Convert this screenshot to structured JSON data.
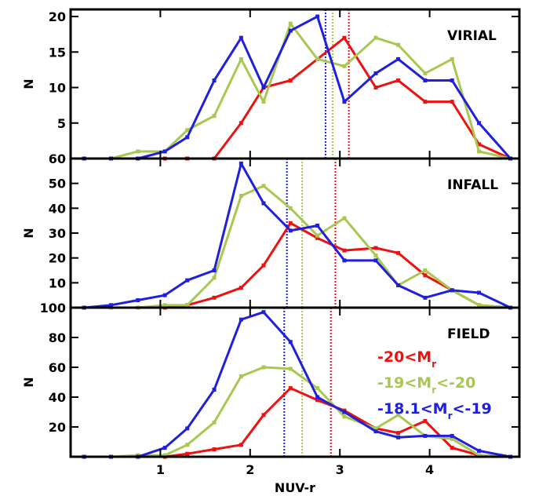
{
  "chart_data": [
    {
      "type": "line",
      "panel_label": "VIRIAL",
      "xlabel": "",
      "ylabel": "N",
      "xlim": [
        0,
        5
      ],
      "ylim": [
        0,
        21
      ],
      "yticks": [
        5,
        10,
        15,
        20
      ],
      "series": [
        {
          "color": "#ee1111",
          "x": [
            0.15,
            0.45,
            0.75,
            1.05,
            1.3,
            1.6,
            1.9,
            2.15,
            2.45,
            2.75,
            3.05,
            3.4,
            3.65,
            3.95,
            4.25,
            4.55,
            4.9
          ],
          "values": [
            0,
            0,
            0,
            0,
            0,
            0,
            5,
            10,
            11,
            14,
            17,
            10,
            11,
            8,
            8,
            2,
            0
          ]
        },
        {
          "color": "#a8c850",
          "x": [
            0.15,
            0.45,
            0.75,
            1.05,
            1.3,
            1.6,
            1.9,
            2.15,
            2.45,
            2.75,
            3.05,
            3.4,
            3.65,
            3.95,
            4.25,
            4.55,
            4.9
          ],
          "values": [
            0,
            0,
            1,
            1,
            4,
            6,
            14,
            8,
            19,
            14,
            13,
            17,
            16,
            12,
            14,
            1,
            0
          ]
        },
        {
          "color": "#1f1fdd",
          "x": [
            0.15,
            0.45,
            0.75,
            1.05,
            1.3,
            1.6,
            1.9,
            2.15,
            2.45,
            2.75,
            3.05,
            3.4,
            3.65,
            3.95,
            4.25,
            4.55,
            4.9
          ],
          "values": [
            0,
            0,
            0,
            1,
            3,
            11,
            17,
            10,
            18,
            20,
            8,
            12,
            14,
            11,
            11,
            5,
            0
          ]
        }
      ],
      "vlines": [
        {
          "color": "#ee1111",
          "x": 3.1
        },
        {
          "color": "#a8c850",
          "x": 2.92
        },
        {
          "color": "#1f1fdd",
          "x": 2.84
        }
      ]
    },
    {
      "type": "line",
      "panel_label": "INFALL",
      "xlabel": "",
      "ylabel": "N",
      "xlim": [
        0,
        5
      ],
      "ylim": [
        0,
        60
      ],
      "yticks": [
        10,
        20,
        30,
        40,
        50,
        60
      ],
      "series": [
        {
          "color": "#ee1111",
          "x": [
            0.15,
            0.45,
            0.75,
            1.05,
            1.3,
            1.6,
            1.9,
            2.15,
            2.45,
            2.75,
            3.05,
            3.4,
            3.65,
            3.95,
            4.25,
            4.55,
            4.9
          ],
          "values": [
            0,
            0,
            0,
            0,
            1,
            4,
            8,
            17,
            34,
            28,
            23,
            24,
            22,
            13,
            7,
            1,
            0
          ]
        },
        {
          "color": "#a8c850",
          "x": [
            0.15,
            0.45,
            0.75,
            1.05,
            1.3,
            1.6,
            1.9,
            2.15,
            2.45,
            2.75,
            3.05,
            3.4,
            3.65,
            3.95,
            4.25,
            4.55,
            4.9
          ],
          "values": [
            0,
            0,
            0,
            1,
            1,
            12,
            45,
            49,
            40,
            29,
            36,
            21,
            9,
            15,
            7,
            1,
            0
          ]
        },
        {
          "color": "#1f1fdd",
          "x": [
            0.15,
            0.45,
            0.75,
            1.05,
            1.3,
            1.6,
            1.9,
            2.15,
            2.45,
            2.75,
            3.05,
            3.4,
            3.65,
            3.95,
            4.25,
            4.55,
            4.9
          ],
          "values": [
            0,
            1,
            3,
            5,
            11,
            15,
            58,
            42,
            31,
            33,
            19,
            19,
            9,
            4,
            7,
            6,
            0
          ]
        }
      ],
      "vlines": [
        {
          "color": "#ee1111",
          "x": 2.95
        },
        {
          "color": "#a8c850",
          "x": 2.58
        },
        {
          "color": "#1f1fdd",
          "x": 2.41
        }
      ]
    },
    {
      "type": "line",
      "panel_label": "FIELD",
      "xlabel": "NUV-r",
      "ylabel": "N",
      "xlim": [
        0,
        5
      ],
      "ylim": [
        0,
        100
      ],
      "yticks": [
        20,
        40,
        60,
        80,
        100
      ],
      "xticks": [
        1,
        2,
        3,
        4
      ],
      "series": [
        {
          "color": "#ee1111",
          "x": [
            0.15,
            0.45,
            0.75,
            1.05,
            1.3,
            1.6,
            1.9,
            2.15,
            2.45,
            2.75,
            3.05,
            3.4,
            3.65,
            3.95,
            4.25,
            4.55,
            4.9
          ],
          "values": [
            0,
            0,
            0,
            0,
            2,
            5,
            8,
            28,
            46,
            38,
            31,
            19,
            16,
            24,
            6,
            1,
            0
          ]
        },
        {
          "color": "#a8c850",
          "x": [
            0.15,
            0.45,
            0.75,
            1.05,
            1.3,
            1.6,
            1.9,
            2.15,
            2.45,
            2.75,
            3.05,
            3.4,
            3.65,
            3.95,
            4.25,
            4.55,
            4.9
          ],
          "values": [
            0,
            0,
            1,
            1,
            8,
            23,
            54,
            60,
            59,
            46,
            27,
            19,
            28,
            14,
            12,
            1,
            0
          ]
        },
        {
          "color": "#1f1fdd",
          "x": [
            0.15,
            0.45,
            0.75,
            1.05,
            1.3,
            1.6,
            1.9,
            2.15,
            2.45,
            2.75,
            3.05,
            3.4,
            3.65,
            3.95,
            4.25,
            4.55,
            4.9
          ],
          "values": [
            0,
            0,
            0,
            6,
            19,
            45,
            92,
            97,
            77,
            40,
            30,
            17,
            13,
            14,
            14,
            4,
            0
          ]
        }
      ],
      "vlines": [
        {
          "color": "#ee1111",
          "x": 2.9
        },
        {
          "color": "#a8c850",
          "x": 2.58
        },
        {
          "color": "#1f1fdd",
          "x": 2.38
        }
      ],
      "legend": [
        {
          "color": "#ee1111",
          "label": "-20<M_r"
        },
        {
          "color": "#a8c850",
          "label": "-19<M_r<-20"
        },
        {
          "color": "#1f1fdd",
          "label": "-18.1<M_r<-19"
        }
      ]
    }
  ]
}
